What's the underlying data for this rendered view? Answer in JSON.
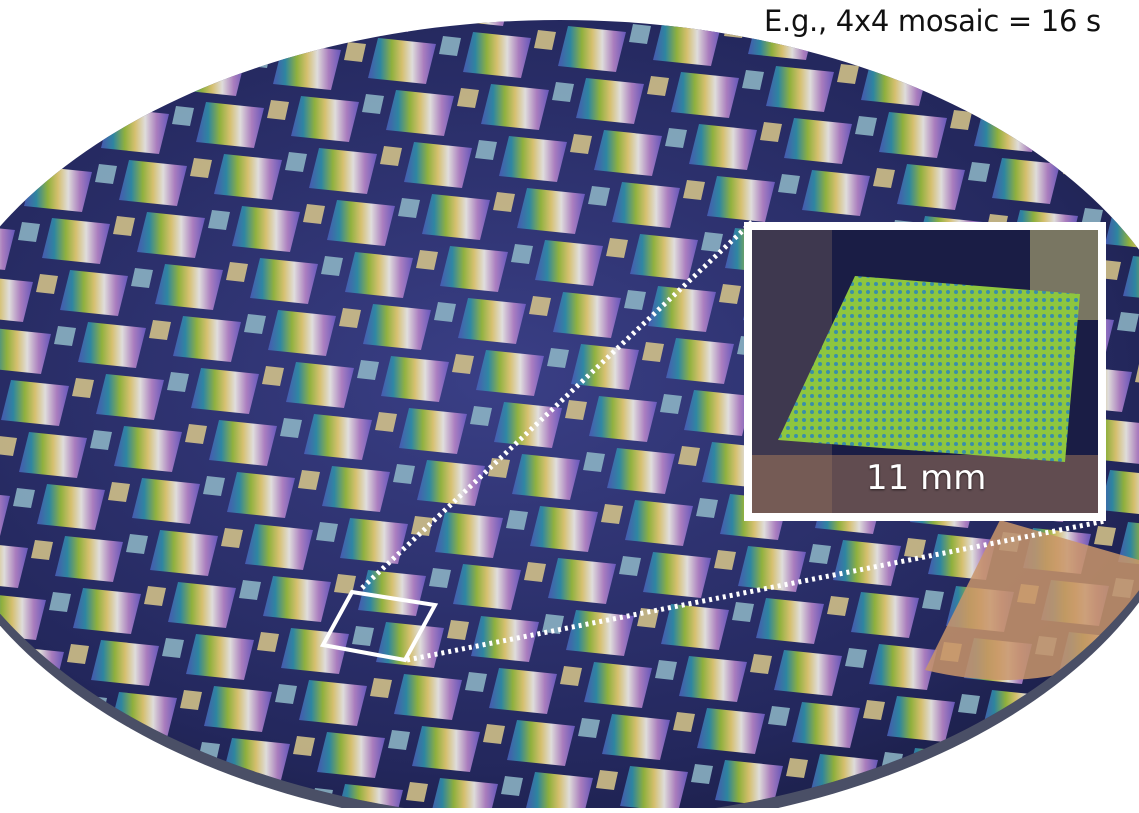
{
  "image": {
    "subject": "wafer",
    "colors": {
      "wafer_dark": "#1b1f4a",
      "wafer_mid": "#2c3270",
      "highlight_box": "#ffffff",
      "leader_line": "#ffffff",
      "inset_chip": "#9ccf4a"
    }
  },
  "caption": {
    "text": "E.g., 4x4 mosaic = 16 s"
  },
  "inset": {
    "scale_label": "11 mm"
  }
}
